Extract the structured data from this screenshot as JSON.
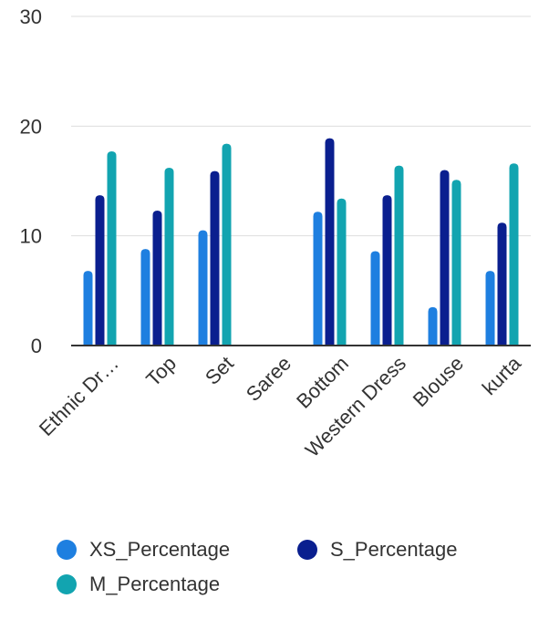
{
  "chart_data": {
    "type": "bar",
    "categories": [
      "Ethnic Dr…",
      "Top",
      "Set",
      "Saree",
      "Bottom",
      "Western Dress",
      "Blouse",
      "kurta"
    ],
    "series": [
      {
        "name": "XS_Percentage",
        "color": "#1E7FE0",
        "values": [
          6.8,
          8.8,
          10.5,
          0,
          12.2,
          8.6,
          3.5,
          6.8
        ]
      },
      {
        "name": "S_Percentage",
        "color": "#0A1F8F",
        "values": [
          13.7,
          12.3,
          15.9,
          0,
          18.9,
          13.7,
          16.0,
          11.2
        ]
      },
      {
        "name": "M_Percentage",
        "color": "#12A4B0",
        "values": [
          17.7,
          16.2,
          18.4,
          0,
          13.4,
          16.4,
          15.1,
          16.6
        ]
      }
    ],
    "y_ticks": [
      "0",
      "10",
      "20",
      "30"
    ],
    "ylim": [
      0,
      30
    ],
    "grid": true,
    "legend_position": "bottom"
  }
}
